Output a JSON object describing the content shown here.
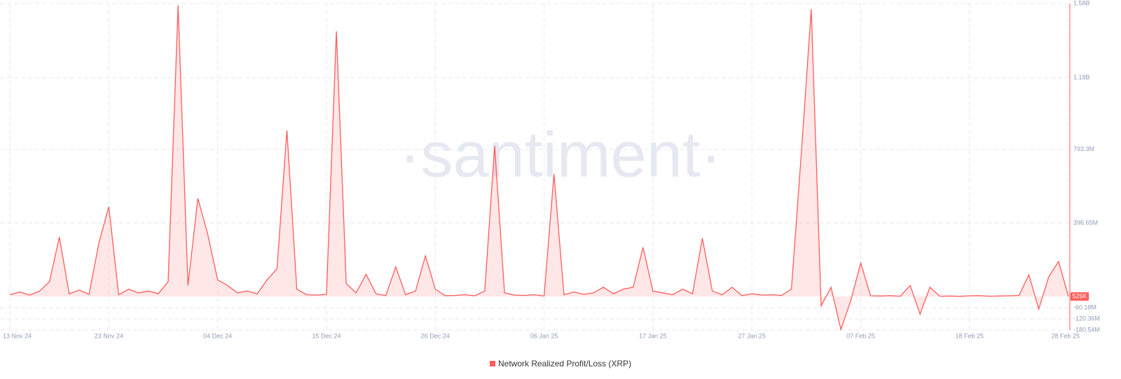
{
  "chart_data": {
    "type": "area-line",
    "watermark": "·santiment·",
    "x": [
      "2024-11-13",
      "2024-11-14",
      "2024-11-15",
      "2024-11-16",
      "2024-11-17",
      "2024-11-18",
      "2024-11-19",
      "2024-11-20",
      "2024-11-21",
      "2024-11-22",
      "2024-11-23",
      "2024-11-24",
      "2024-11-25",
      "2024-11-26",
      "2024-11-27",
      "2024-11-28",
      "2024-11-29",
      "2024-11-30",
      "2024-12-01",
      "2024-12-02",
      "2024-12-03",
      "2024-12-04",
      "2024-12-05",
      "2024-12-06",
      "2024-12-07",
      "2024-12-08",
      "2024-12-09",
      "2024-12-10",
      "2024-12-11",
      "2024-12-12",
      "2024-12-13",
      "2024-12-14",
      "2024-12-15",
      "2024-12-16",
      "2024-12-17",
      "2024-12-18",
      "2024-12-19",
      "2024-12-20",
      "2024-12-21",
      "2024-12-22",
      "2024-12-23",
      "2024-12-24",
      "2024-12-25",
      "2024-12-26",
      "2024-12-27",
      "2024-12-28",
      "2024-12-29",
      "2024-12-30",
      "2024-12-31",
      "2025-01-01",
      "2025-01-02",
      "2025-01-03",
      "2025-01-04",
      "2025-01-05",
      "2025-01-06",
      "2025-01-07",
      "2025-01-08",
      "2025-01-09",
      "2025-01-10",
      "2025-01-11",
      "2025-01-12",
      "2025-01-13",
      "2025-01-14",
      "2025-01-15",
      "2025-01-16",
      "2025-01-17",
      "2025-01-18",
      "2025-01-19",
      "2025-01-20",
      "2025-01-21",
      "2025-01-22",
      "2025-01-23",
      "2025-01-24",
      "2025-01-25",
      "2025-01-26",
      "2025-01-27",
      "2025-01-28",
      "2025-01-29",
      "2025-01-30",
      "2025-01-31",
      "2025-02-01",
      "2025-02-02",
      "2025-02-03",
      "2025-02-04",
      "2025-02-05",
      "2025-02-06",
      "2025-02-07",
      "2025-02-08",
      "2025-02-09",
      "2025-02-10",
      "2025-02-11",
      "2025-02-12",
      "2025-02-13",
      "2025-02-14",
      "2025-02-15",
      "2025-02-16",
      "2025-02-17",
      "2025-02-18",
      "2025-02-19",
      "2025-02-20",
      "2025-02-21",
      "2025-02-22",
      "2025-02-23",
      "2025-02-24",
      "2025-02-25",
      "2025-02-26",
      "2025-02-27",
      "2025-02-28"
    ],
    "series": [
      {
        "name": "Network Realized Profit/Loss (XRP)",
        "color": "#ff5b5b",
        "values": [
          10000000,
          25000000,
          8000000,
          30000000,
          80000000,
          321000000,
          15000000,
          35000000,
          12000000,
          290000000,
          484000000,
          10000000,
          40000000,
          20000000,
          30000000,
          15000000,
          80000000,
          1570000000,
          60000000,
          530000000,
          336000000,
          90000000,
          60000000,
          20000000,
          30000000,
          15000000,
          90000000,
          150000000,
          896000000,
          40000000,
          10000000,
          8000000,
          12000000,
          1430000000,
          70000000,
          20000000,
          120000000,
          15000000,
          5000000,
          160000000,
          10000000,
          30000000,
          219000000,
          40000000,
          5000000,
          6000000,
          10000000,
          4000000,
          30000000,
          812000000,
          20000000,
          8000000,
          6000000,
          10000000,
          3000000,
          661000000,
          10000000,
          25000000,
          12000000,
          20000000,
          50000000,
          15000000,
          40000000,
          50000000,
          265000000,
          30000000,
          20000000,
          10000000,
          40000000,
          15000000,
          314000000,
          30000000,
          10000000,
          50000000,
          5000000,
          15000000,
          8000000,
          10000000,
          6000000,
          40000000,
          775000000,
          1550000000,
          -50000000,
          50000000,
          -178000000,
          -20000000,
          181000000,
          4000000,
          3000000,
          5000000,
          2000000,
          60000000,
          -95000000,
          50000000,
          2000000,
          3000000,
          1000000,
          4000000,
          5000000,
          2000000,
          3000000,
          4000000,
          6000000,
          117000000,
          -68000000,
          106000000,
          189000000,
          526000
        ]
      }
    ],
    "current_value": {
      "value": 526000,
      "label": "526K"
    },
    "xlim": [
      "2024-11-12",
      "2025-02-28"
    ],
    "xticks": [
      {
        "value": "2024-11-13",
        "label": "13 Nov 24"
      },
      {
        "value": "2024-11-23",
        "label": "23 Nov 24"
      },
      {
        "value": "2024-12-04",
        "label": "04 Dec 24"
      },
      {
        "value": "2024-12-15",
        "label": "15 Dec 24"
      },
      {
        "value": "2024-12-26",
        "label": "26 Dec 24"
      },
      {
        "value": "2025-01-06",
        "label": "06 Jan 25"
      },
      {
        "value": "2025-01-17",
        "label": "17 Jan 25"
      },
      {
        "value": "2025-01-27",
        "label": "27 Jan 25"
      },
      {
        "value": "2025-02-07",
        "label": "07 Feb 25"
      },
      {
        "value": "2025-02-18",
        "label": "18 Feb 25"
      },
      {
        "value": "2025-02-28",
        "label": "28 Feb 25"
      }
    ],
    "ylim": [
      -180540000,
      1580000000
    ],
    "yticks": [
      {
        "value": 1580000000,
        "label": "1.58B"
      },
      {
        "value": 1180000000,
        "label": "1.18B"
      },
      {
        "value": 793300000,
        "label": "793.3M"
      },
      {
        "value": 396650000,
        "label": "396.65M"
      },
      {
        "value": -60180000,
        "label": "-60.18M"
      },
      {
        "value": -120360000,
        "label": "-120.36M"
      },
      {
        "value": -180540000,
        "label": "-180.54M"
      }
    ],
    "grid": true
  }
}
